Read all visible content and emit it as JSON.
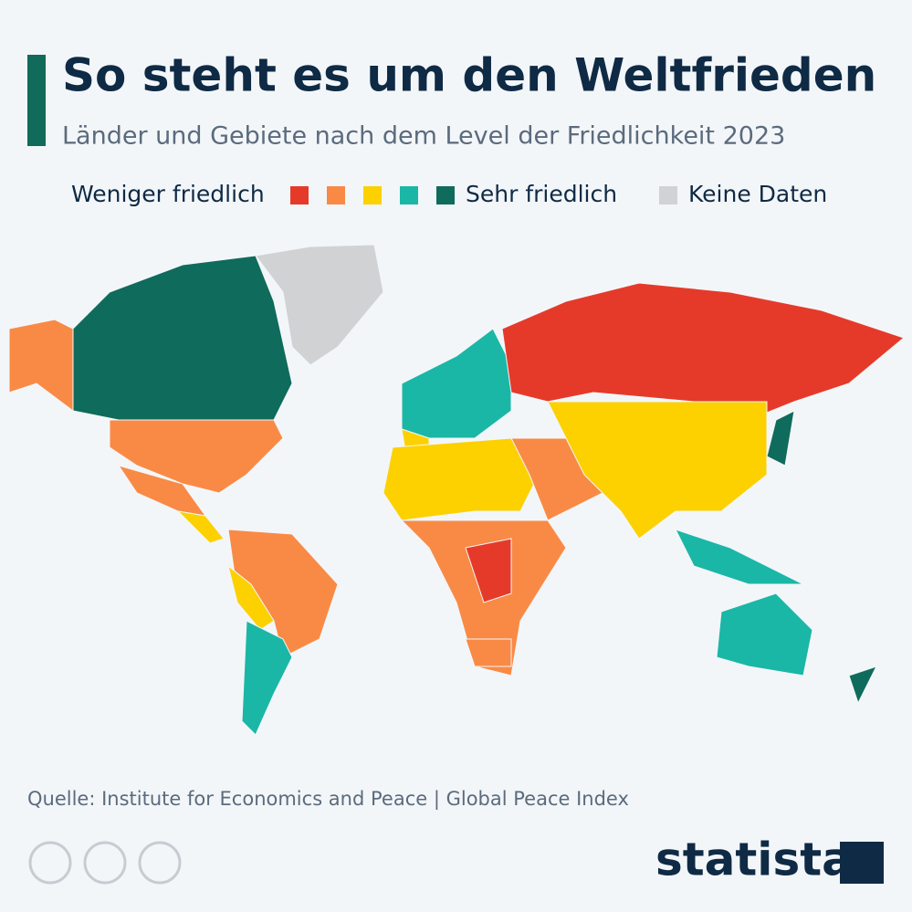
{
  "header": {
    "title": "So steht es um den Weltfrieden",
    "subtitle": "Länder und Gebiete nach dem Level der Friedlichkeit 2023"
  },
  "legend": {
    "low_label": "Weniger friedlich",
    "high_label": "Sehr friedlich",
    "no_data_label": "Keine Daten"
  },
  "footer": {
    "source": "Quelle: Institute for Economics and Peace | Global Peace Index",
    "brand": "statista"
  }
}
